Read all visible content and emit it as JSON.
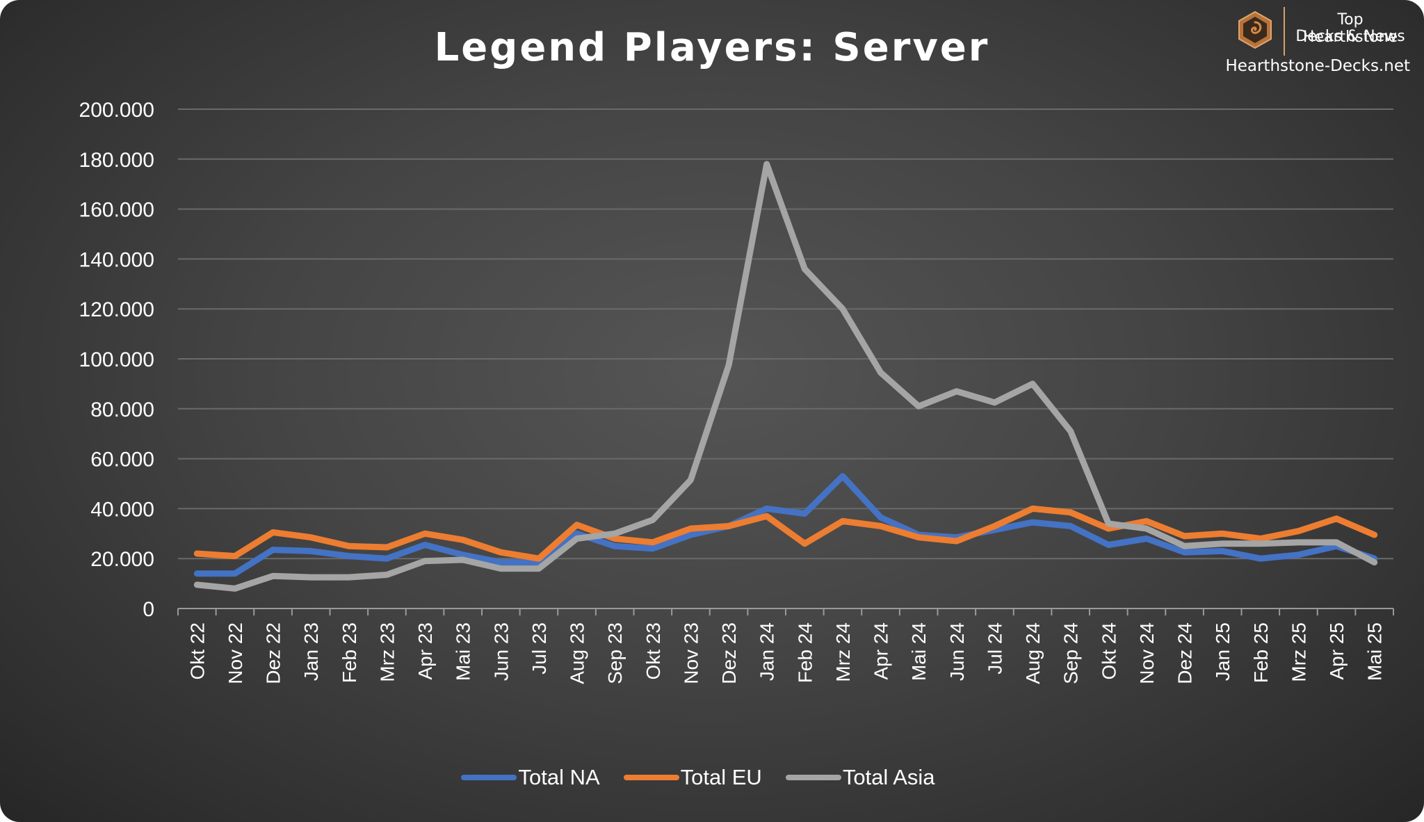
{
  "branding": {
    "line1": "Top Hearthstone",
    "line2": "Decks & News",
    "url": "Hearthstone-Decks.net"
  },
  "chart_data": {
    "type": "line",
    "title": "Legend Players: Server",
    "xlabel": "",
    "ylabel": "",
    "ylim": [
      0,
      200000
    ],
    "yticks": [
      "0",
      "20.000",
      "40.000",
      "60.000",
      "80.000",
      "100.000",
      "120.000",
      "140.000",
      "160.000",
      "180.000",
      "200.000"
    ],
    "grid": true,
    "legend": "bottom",
    "categories": [
      "Okt 22",
      "Nov 22",
      "Dez 22",
      "Jan 23",
      "Feb 23",
      "Mrz 23",
      "Apr 23",
      "Mai 23",
      "Jun 23",
      "Jul 23",
      "Aug 23",
      "Sep 23",
      "Okt 23",
      "Nov 23",
      "Dez 23",
      "Jan 24",
      "Feb 24",
      "Mrz 24",
      "Apr 24",
      "Mai 24",
      "Jun 24",
      "Jul 24",
      "Aug 24",
      "Sep 24",
      "Okt 24",
      "Nov 24",
      "Dez 24",
      "Jan 25",
      "Feb 25",
      "Mrz 25",
      "Apr 25",
      "Mai 25"
    ],
    "series": [
      {
        "name": "Total NA",
        "color": "#4472c4",
        "values": [
          14000,
          14000,
          23500,
          23000,
          21000,
          20000,
          25500,
          21500,
          18500,
          18500,
          30000,
          25000,
          24000,
          29500,
          33000,
          40000,
          38000,
          53000,
          36500,
          29500,
          28500,
          31500,
          34500,
          33000,
          25500,
          28000,
          22500,
          23000,
          20000,
          21500,
          25000,
          20000
        ]
      },
      {
        "name": "Total EU",
        "color": "#ed7d31",
        "values": [
          22000,
          21000,
          30500,
          28500,
          25000,
          24500,
          30000,
          27500,
          22500,
          20000,
          33500,
          28000,
          26500,
          32000,
          33000,
          37000,
          26000,
          35000,
          33000,
          28500,
          27000,
          33000,
          40000,
          38500,
          32000,
          35000,
          29000,
          30000,
          28000,
          31000,
          36000,
          29500
        ]
      },
      {
        "name": "Total Asia",
        "color": "#a5a5a5",
        "values": [
          9500,
          8000,
          13000,
          12500,
          12500,
          13500,
          19000,
          19500,
          16000,
          16000,
          28000,
          30000,
          35500,
          51500,
          97500,
          178000,
          136000,
          120000,
          94500,
          81000,
          87000,
          82500,
          90000,
          71000,
          34000,
          32000,
          25000,
          26000,
          26000,
          26500,
          26500,
          18500
        ]
      }
    ]
  }
}
